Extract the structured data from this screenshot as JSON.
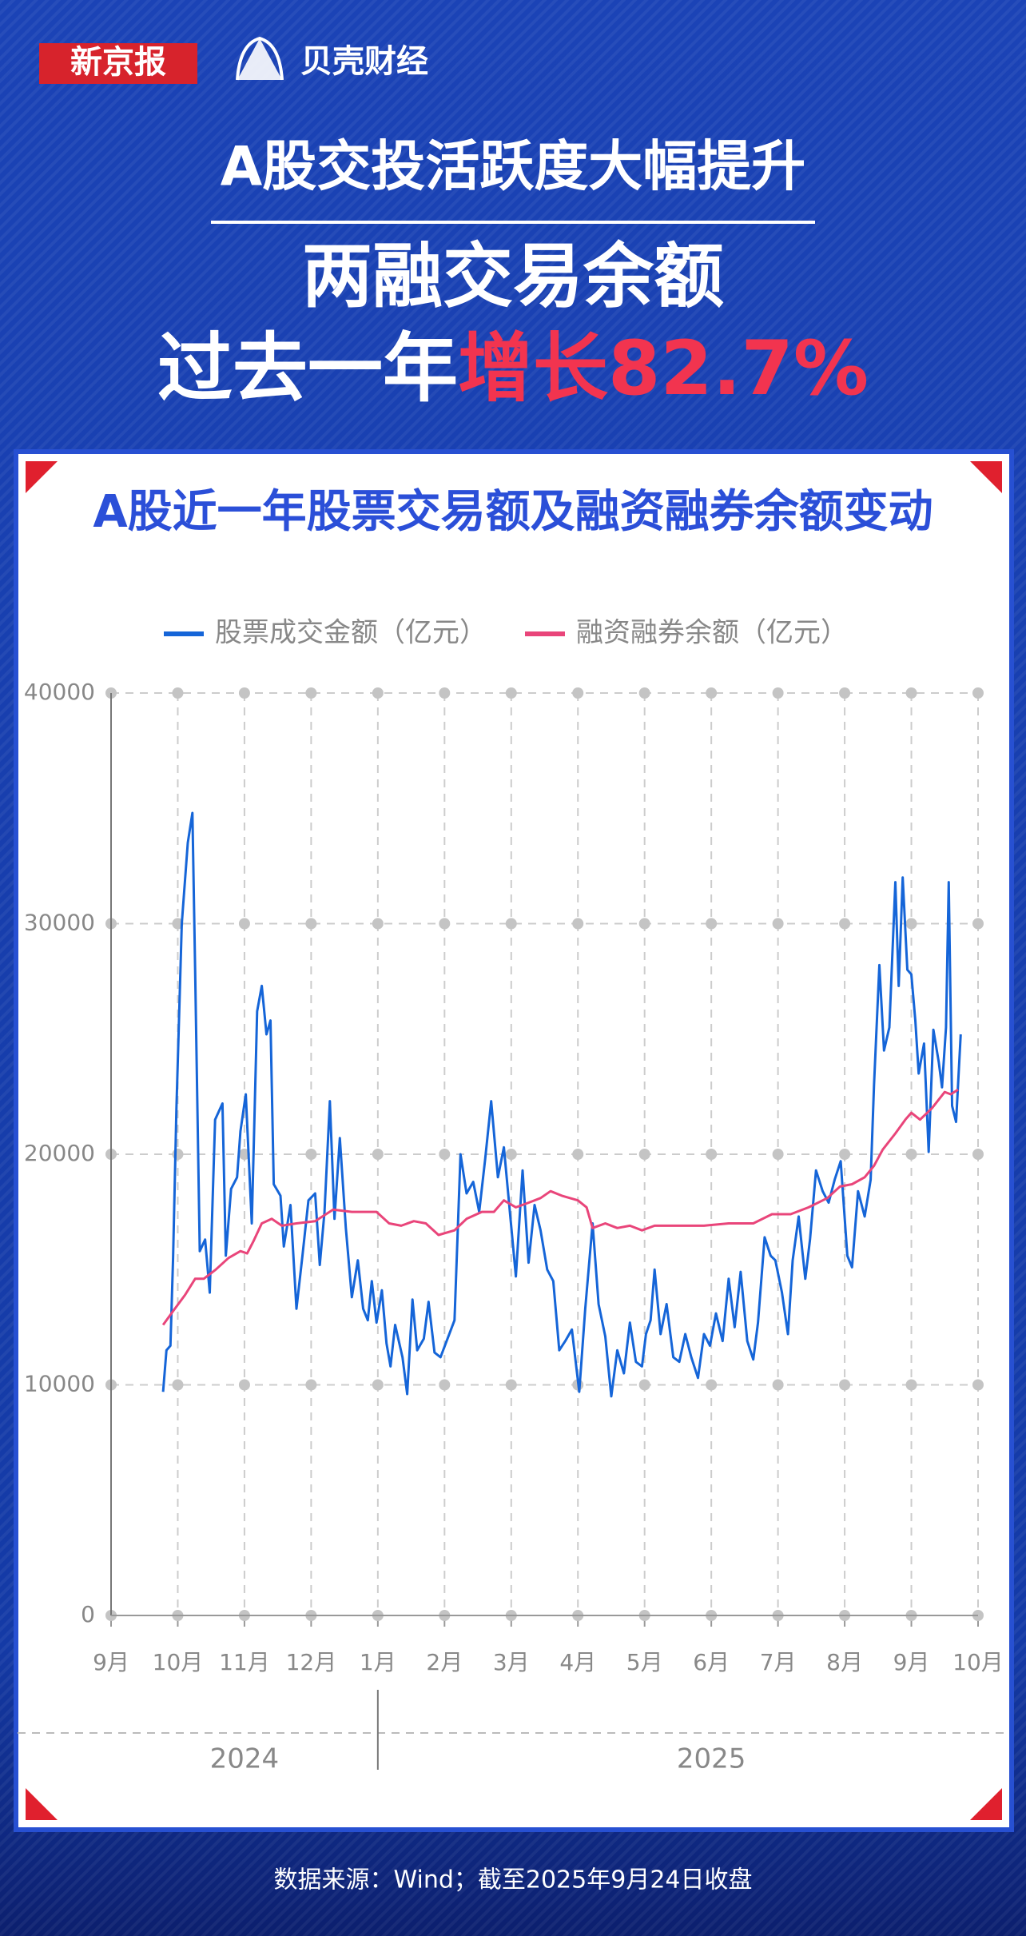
{
  "header": {
    "logo_left": "新京报",
    "logo_right": "贝壳财经",
    "headline": "A股交投活跃度大幅提升",
    "subline1": "两融交易余额",
    "subline2_prefix": "过去一年",
    "subline2_highlight": "增长82.7%"
  },
  "chart_data": {
    "type": "line",
    "title": "A股近一年股票交易额及融资融券余额变动",
    "xlim": [
      0,
      13
    ],
    "xticks": [
      {
        "value": 0,
        "label": "9月"
      },
      {
        "value": 1,
        "label": "10月"
      },
      {
        "value": 2,
        "label": "11月"
      },
      {
        "value": 3,
        "label": "12月"
      },
      {
        "value": 4,
        "label": "1月"
      },
      {
        "value": 5,
        "label": "2月"
      },
      {
        "value": 6,
        "label": "3月"
      },
      {
        "value": 7,
        "label": "4月"
      },
      {
        "value": 8,
        "label": "5月"
      },
      {
        "value": 9,
        "label": "6月"
      },
      {
        "value": 10,
        "label": "7月"
      },
      {
        "value": 11,
        "label": "8月"
      },
      {
        "value": 12,
        "label": "9月"
      },
      {
        "value": 13,
        "label": "10月"
      }
    ],
    "year_labels": [
      {
        "value": 2,
        "label": "2024"
      },
      {
        "value": 9,
        "label": "2025"
      }
    ],
    "ylim": [
      0,
      40000
    ],
    "yticks": [
      0,
      10000,
      20000,
      30000,
      40000
    ],
    "grid": true,
    "series": [
      {
        "name": "股票成交金额（亿元）",
        "color": "#1565d8",
        "x": [
          0.78,
          0.83,
          0.89,
          0.93,
          0.98,
          1.06,
          1.15,
          1.22,
          1.26,
          1.33,
          1.41,
          1.48,
          1.56,
          1.67,
          1.72,
          1.8,
          1.89,
          1.94,
          2.02,
          2.11,
          2.19,
          2.26,
          2.33,
          2.39,
          2.44,
          2.54,
          2.59,
          2.69,
          2.78,
          2.87,
          2.96,
          3.06,
          3.13,
          3.2,
          3.28,
          3.35,
          3.43,
          3.52,
          3.61,
          3.7,
          3.78,
          3.85,
          3.91,
          3.98,
          4.06,
          4.13,
          4.19,
          4.26,
          4.37,
          4.44,
          4.52,
          4.59,
          4.69,
          4.76,
          4.85,
          4.94,
          5.15,
          5.24,
          5.33,
          5.43,
          5.52,
          5.61,
          5.7,
          5.8,
          5.89,
          5.98,
          6.07,
          6.17,
          6.26,
          6.35,
          6.44,
          6.54,
          6.63,
          6.72,
          6.81,
          6.91,
          7.02,
          7.11,
          7.22,
          7.31,
          7.41,
          7.5,
          7.59,
          7.69,
          7.78,
          7.87,
          7.96,
          8.02,
          8.09,
          8.15,
          8.24,
          8.33,
          8.43,
          8.52,
          8.61,
          8.7,
          8.8,
          8.89,
          8.98,
          9.07,
          9.17,
          9.26,
          9.35,
          9.44,
          9.54,
          9.63,
          9.7,
          9.8,
          9.89,
          9.96,
          10.06,
          10.15,
          10.22,
          10.31,
          10.41,
          10.48,
          10.57,
          10.67,
          10.76,
          10.85,
          10.94,
          11.04,
          11.11,
          11.2,
          11.3,
          11.39,
          11.44,
          11.52,
          11.59,
          11.67,
          11.76,
          11.81,
          11.87,
          11.94,
          12.0,
          12.06,
          12.11,
          12.19,
          12.26,
          12.33,
          12.41,
          12.46,
          12.52,
          12.56,
          12.61,
          12.67,
          12.74
        ],
        "values": [
          9700,
          11500,
          11700,
          15500,
          22000,
          30000,
          33500,
          34800,
          28000,
          15800,
          16300,
          14000,
          21500,
          22200,
          15600,
          18500,
          19000,
          21000,
          22600,
          17000,
          26200,
          27300,
          25200,
          25800,
          18700,
          18200,
          16000,
          17800,
          13300,
          15600,
          18000,
          18300,
          15200,
          17500,
          22300,
          17200,
          20700,
          16800,
          13800,
          15400,
          13300,
          12800,
          14500,
          12700,
          14100,
          11800,
          10800,
          12600,
          11200,
          9600,
          13700,
          11500,
          12000,
          13600,
          11400,
          11200,
          12800,
          20000,
          18300,
          18800,
          17500,
          19800,
          22300,
          19000,
          20300,
          17500,
          14700,
          19300,
          15300,
          17800,
          16700,
          15000,
          14500,
          11500,
          11900,
          12400,
          9700,
          13300,
          17000,
          13500,
          12100,
          9500,
          11500,
          10500,
          12700,
          11000,
          10800,
          12200,
          12800,
          15000,
          12200,
          13500,
          11200,
          11000,
          12200,
          11200,
          10300,
          12200,
          11700,
          13100,
          11900,
          14600,
          12500,
          14900,
          11900,
          11100,
          12700,
          16400,
          15600,
          15400,
          14000,
          12200,
          15400,
          17300,
          14600,
          16300,
          19300,
          18400,
          17900,
          18900,
          19700,
          15600,
          15100,
          18400,
          17300,
          18900,
          23000,
          28200,
          24500,
          25500,
          31800,
          27300,
          32000,
          28000,
          27800,
          25800,
          23500,
          24800,
          20100,
          25400,
          24000,
          22900,
          25500,
          31800,
          22100,
          21400,
          25200
        ]
      },
      {
        "name": "融资融券余额（亿元）",
        "color": "#e9457a",
        "x": [
          0.78,
          0.93,
          1.11,
          1.26,
          1.39,
          1.57,
          1.76,
          1.94,
          2.04,
          2.13,
          2.26,
          2.41,
          2.56,
          2.78,
          3.06,
          3.33,
          3.61,
          3.98,
          4.17,
          4.35,
          4.54,
          4.72,
          4.91,
          5.15,
          5.33,
          5.56,
          5.74,
          5.89,
          6.07,
          6.26,
          6.44,
          6.59,
          6.76,
          7.0,
          7.13,
          7.22,
          7.41,
          7.59,
          7.78,
          7.96,
          8.15,
          8.52,
          8.89,
          9.26,
          9.63,
          9.91,
          10.19,
          10.46,
          10.74,
          10.93,
          11.11,
          11.3,
          11.44,
          11.57,
          11.76,
          11.91,
          12.0,
          12.13,
          12.31,
          12.5,
          12.59,
          12.7
        ],
        "values": [
          12600,
          13200,
          13900,
          14600,
          14600,
          15000,
          15500,
          15800,
          15700,
          16200,
          17000,
          17200,
          16900,
          17000,
          17100,
          17600,
          17500,
          17500,
          17000,
          16900,
          17100,
          17000,
          16500,
          16700,
          17200,
          17500,
          17500,
          18000,
          17700,
          17900,
          18100,
          18400,
          18200,
          18000,
          17700,
          16800,
          17000,
          16800,
          16900,
          16700,
          16900,
          16900,
          16900,
          17000,
          17000,
          17400,
          17400,
          17700,
          18100,
          18600,
          18700,
          19000,
          19500,
          20200,
          20900,
          21500,
          21800,
          21500,
          22000,
          22700,
          22600,
          22800
        ]
      }
    ],
    "source": "数据来源：Wind；截至2025年9月24日收盘"
  }
}
